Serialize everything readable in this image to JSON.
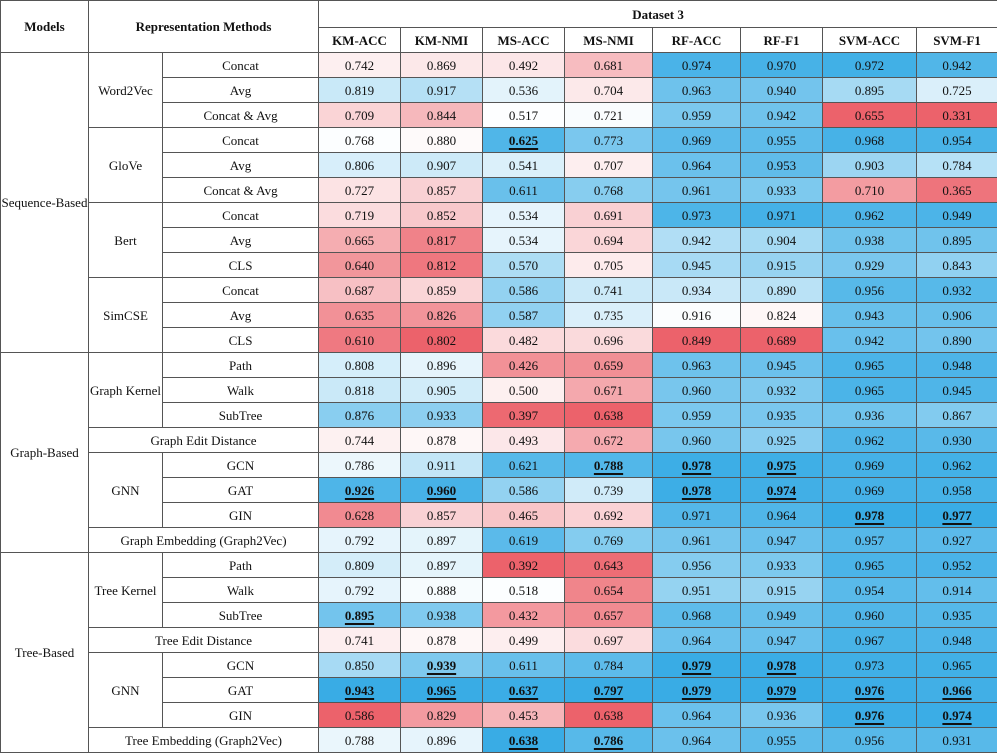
{
  "header": {
    "models": "Models",
    "methods": "Representation Methods",
    "dataset": "Dataset 3",
    "metrics": [
      "KM-ACC",
      "KM-NMI",
      "MS-ACC",
      "MS-NMI",
      "RF-ACC",
      "RF-F1",
      "SVM-ACC",
      "SVM-F1"
    ]
  },
  "colors": {
    "high": "#2fa8e4",
    "low": "#eb5a63",
    "neutral": "#ffffff",
    "border": "#555555"
  },
  "color_scale": {
    "min": [
      0.742,
      0.869,
      0.492,
      0.681,
      0.974,
      0.97,
      0.972,
      0.942
    ]
  },
  "groups": [
    {
      "model": "Sequence-Based",
      "blocks": [
        {
          "name": "Word2Vec",
          "rows": [
            {
              "method": "Concat",
              "values": [
                0.742,
                0.869,
                0.492,
                0.681,
                0.974,
                0.97,
                0.972,
                0.942
              ],
              "best": []
            },
            {
              "method": "Avg",
              "values": [
                0.819,
                0.917,
                0.536,
                0.704,
                0.963,
                0.94,
                0.895,
                0.725
              ],
              "best": []
            },
            {
              "method": "Concat & Avg",
              "values": [
                0.709,
                0.844,
                0.517,
                0.721,
                0.959,
                0.942,
                0.655,
                0.331
              ],
              "best": []
            }
          ]
        },
        {
          "name": "GloVe",
          "rows": [
            {
              "method": "Concat",
              "values": [
                0.768,
                0.88,
                0.625,
                0.773,
                0.969,
                0.955,
                0.968,
                0.954
              ],
              "best": [
                2
              ]
            },
            {
              "method": "Avg",
              "values": [
                0.806,
                0.907,
                0.541,
                0.707,
                0.964,
                0.953,
                0.903,
                0.784
              ],
              "best": []
            },
            {
              "method": "Concat & Avg",
              "values": [
                0.727,
                0.857,
                0.611,
                0.768,
                0.961,
                0.933,
                0.71,
                0.365
              ],
              "best": []
            }
          ]
        },
        {
          "name": "Bert",
          "rows": [
            {
              "method": "Concat",
              "values": [
                0.719,
                0.852,
                0.534,
                0.691,
                0.973,
                0.971,
                0.962,
                0.949
              ],
              "best": []
            },
            {
              "method": "Avg",
              "values": [
                0.665,
                0.817,
                0.534,
                0.694,
                0.942,
                0.904,
                0.938,
                0.895
              ],
              "best": []
            },
            {
              "method": "CLS",
              "values": [
                0.64,
                0.812,
                0.57,
                0.705,
                0.945,
                0.915,
                0.929,
                0.843
              ],
              "best": []
            }
          ]
        },
        {
          "name": "SimCSE",
          "rows": [
            {
              "method": "Concat",
              "values": [
                0.687,
                0.859,
                0.586,
                0.741,
                0.934,
                0.89,
                0.956,
                0.932
              ],
              "best": []
            },
            {
              "method": "Avg",
              "values": [
                0.635,
                0.826,
                0.587,
                0.735,
                0.916,
                0.824,
                0.943,
                0.906
              ],
              "best": []
            },
            {
              "method": "CLS",
              "values": [
                0.61,
                0.802,
                0.482,
                0.696,
                0.849,
                0.689,
                0.942,
                0.89
              ],
              "best": []
            }
          ]
        }
      ]
    },
    {
      "model": "Graph-Based",
      "blocks": [
        {
          "name": "Graph Kernel",
          "rows": [
            {
              "method": "Path",
              "values": [
                0.808,
                0.896,
                0.426,
                0.659,
                0.963,
                0.945,
                0.965,
                0.948
              ],
              "best": []
            },
            {
              "method": "Walk",
              "values": [
                0.818,
                0.905,
                0.5,
                0.671,
                0.96,
                0.932,
                0.965,
                0.945
              ],
              "best": []
            },
            {
              "method": "SubTree",
              "values": [
                0.876,
                0.933,
                0.397,
                0.638,
                0.959,
                0.935,
                0.936,
                0.867
              ],
              "best": []
            }
          ]
        },
        {
          "span": true,
          "name": "Graph Edit Distance",
          "rows": [
            {
              "values": [
                0.744,
                0.878,
                0.493,
                0.672,
                0.96,
                0.925,
                0.962,
                0.93
              ],
              "best": []
            }
          ]
        },
        {
          "name": "GNN",
          "rows": [
            {
              "method": "GCN",
              "values": [
                0.786,
                0.911,
                0.621,
                0.788,
                0.978,
                0.975,
                0.969,
                0.962
              ],
              "best": [
                3,
                4,
                5
              ]
            },
            {
              "method": "GAT",
              "values": [
                0.926,
                0.96,
                0.586,
                0.739,
                0.978,
                0.974,
                0.969,
                0.958
              ],
              "best": [
                0,
                1,
                4,
                5
              ]
            },
            {
              "method": "GIN",
              "values": [
                0.628,
                0.857,
                0.465,
                0.692,
                0.971,
                0.964,
                0.978,
                0.977
              ],
              "best": [
                6,
                7
              ]
            }
          ]
        },
        {
          "span": true,
          "name": "Graph Embedding (Graph2Vec)",
          "rows": [
            {
              "values": [
                0.792,
                0.897,
                0.619,
                0.769,
                0.961,
                0.947,
                0.957,
                0.927
              ],
              "best": []
            }
          ]
        }
      ]
    },
    {
      "model": "Tree-Based",
      "blocks": [
        {
          "name": "Tree Kernel",
          "rows": [
            {
              "method": "Path",
              "values": [
                0.809,
                0.897,
                0.392,
                0.643,
                0.956,
                0.933,
                0.965,
                0.952
              ],
              "best": []
            },
            {
              "method": "Walk",
              "values": [
                0.792,
                0.888,
                0.518,
                0.654,
                0.951,
                0.915,
                0.954,
                0.914
              ],
              "best": []
            },
            {
              "method": "SubTree",
              "values": [
                0.895,
                0.938,
                0.432,
                0.657,
                0.968,
                0.949,
                0.96,
                0.935
              ],
              "best": [
                0
              ]
            }
          ]
        },
        {
          "span": true,
          "name": "Tree Edit Distance",
          "rows": [
            {
              "values": [
                0.741,
                0.878,
                0.499,
                0.697,
                0.964,
                0.947,
                0.967,
                0.948
              ],
              "best": []
            }
          ]
        },
        {
          "name": "GNN",
          "rows": [
            {
              "method": "GCN",
              "values": [
                0.85,
                0.939,
                0.611,
                0.784,
                0.979,
                0.978,
                0.973,
                0.965
              ],
              "best": [
                1,
                4,
                5
              ]
            },
            {
              "method": "GAT",
              "values": [
                0.943,
                0.965,
                0.637,
                0.797,
                0.979,
                0.979,
                0.976,
                0.966
              ],
              "best": [
                0,
                1,
                2,
                3,
                4,
                5,
                6,
                7
              ]
            },
            {
              "method": "GIN",
              "values": [
                0.586,
                0.829,
                0.453,
                0.638,
                0.964,
                0.936,
                0.976,
                0.974
              ],
              "best": [
                6,
                7
              ]
            }
          ]
        },
        {
          "span": true,
          "name": "Tree Embedding (Graph2Vec)",
          "rows": [
            {
              "values": [
                0.788,
                0.896,
                0.638,
                0.786,
                0.964,
                0.955,
                0.956,
                0.931
              ],
              "best": [
                2,
                3
              ]
            }
          ]
        }
      ]
    }
  ]
}
